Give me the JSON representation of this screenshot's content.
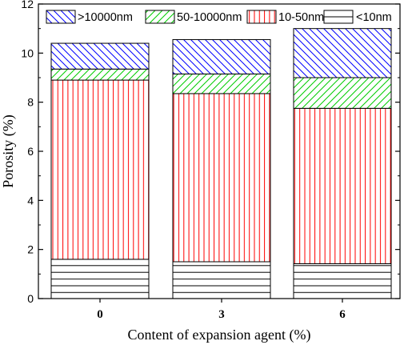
{
  "chart_data": {
    "type": "bar",
    "stacked": true,
    "categories": [
      "0",
      "3",
      "6"
    ],
    "series": [
      {
        "name": "<10nm",
        "values": [
          1.6,
          1.5,
          1.42
        ],
        "color": "#000000",
        "pattern": "horizontal"
      },
      {
        "name": "10-50nm",
        "values": [
          7.3,
          6.85,
          6.33
        ],
        "color": "#ff0000",
        "pattern": "vertical"
      },
      {
        "name": "50-10000nm",
        "values": [
          0.45,
          0.8,
          1.25
        ],
        "color": "#00cc00",
        "pattern": "forward-diagonal"
      },
      {
        "name": ">10000nm",
        "values": [
          1.05,
          1.4,
          2.0
        ],
        "color": "#0000ff",
        "pattern": "back-diagonal"
      }
    ],
    "legend_order": [
      ">10000nm",
      "50-10000nm",
      "10-50nm",
      "<10nm"
    ],
    "xlabel": "Content of expansion agent (%)",
    "ylabel": "Porosity  (%)",
    "ylim": [
      0,
      12
    ],
    "yticks": [
      0,
      2,
      4,
      6,
      8,
      10,
      12
    ],
    "grid": false,
    "legend_position": "top"
  }
}
